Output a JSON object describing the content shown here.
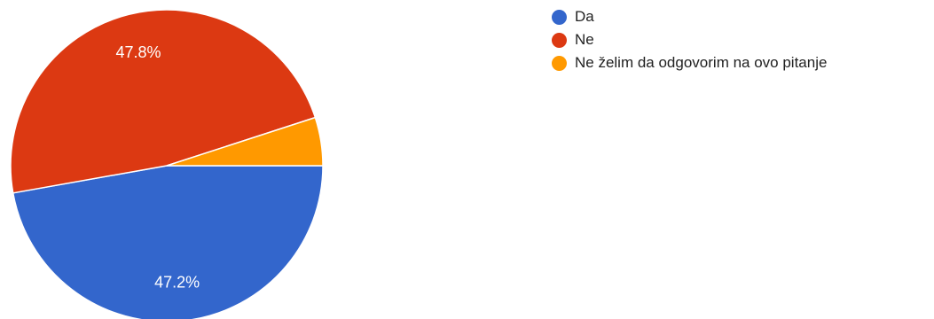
{
  "chart_data": {
    "type": "pie",
    "slices": [
      {
        "label": "Da",
        "value": 47.2,
        "display": "47.2%",
        "color": "#3366cc"
      },
      {
        "label": "Ne",
        "value": 47.8,
        "display": "47.8%",
        "color": "#dc3912"
      },
      {
        "label": "Ne želim da odgovorim na ovo pitanje",
        "value": 5.0,
        "display": "",
        "color": "#ff9900"
      }
    ],
    "start": "3 o'clock, clockwise",
    "legend": {
      "position": "right"
    }
  }
}
